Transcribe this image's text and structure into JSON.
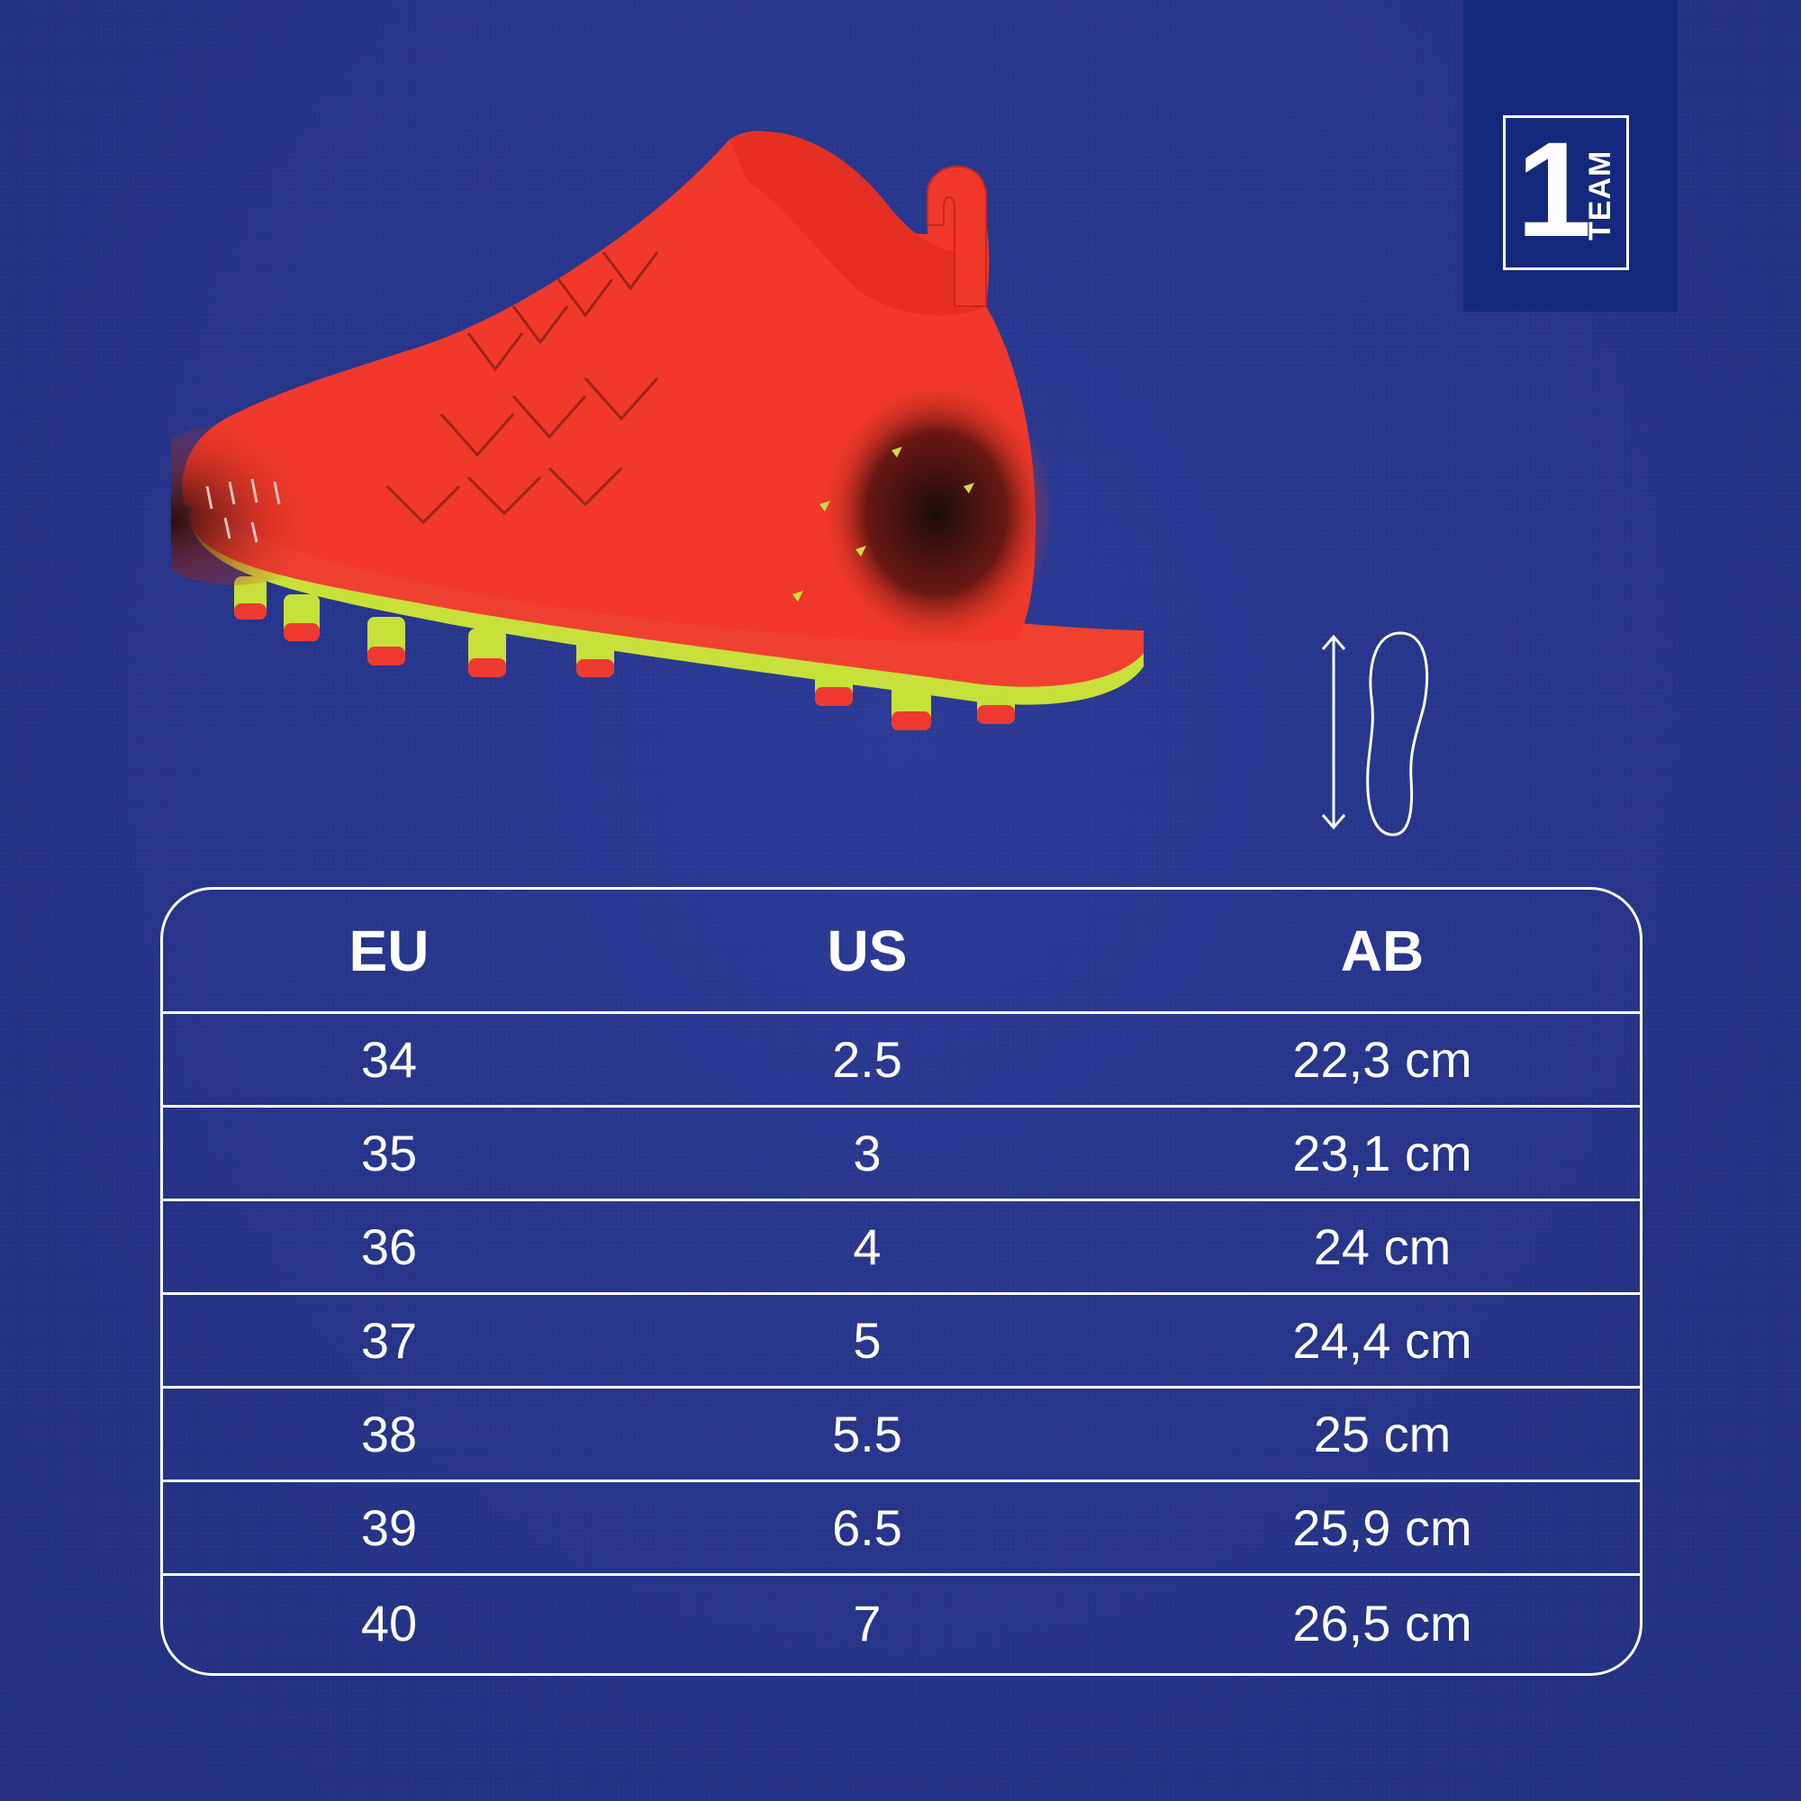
{
  "logo": {
    "number": "1",
    "word": "TEAM"
  },
  "size_table": {
    "headers": {
      "eu": "EU",
      "us": "US",
      "ab": "AB"
    },
    "rows": [
      {
        "eu": "34",
        "us": "2.5",
        "ab": "22,3 cm"
      },
      {
        "eu": "35",
        "us": "3",
        "ab": "23,1 cm"
      },
      {
        "eu": "36",
        "us": "4",
        "ab": "24 cm"
      },
      {
        "eu": "37",
        "us": "5",
        "ab": "24,4 cm"
      },
      {
        "eu": "38",
        "us": "5.5",
        "ab": "25 cm"
      },
      {
        "eu": "39",
        "us": "6.5",
        "ab": "25,9 cm"
      },
      {
        "eu": "40",
        "us": "7",
        "ab": "26,5 cm"
      }
    ]
  },
  "colors": {
    "background": "#27358a",
    "badge": "#14297e",
    "boot_red": "#f0392a",
    "stud_yellow": "#c8e03a",
    "line": "#ffffff"
  },
  "icons": {
    "product": "football-boot-icon",
    "length": "foot-length-icon"
  }
}
